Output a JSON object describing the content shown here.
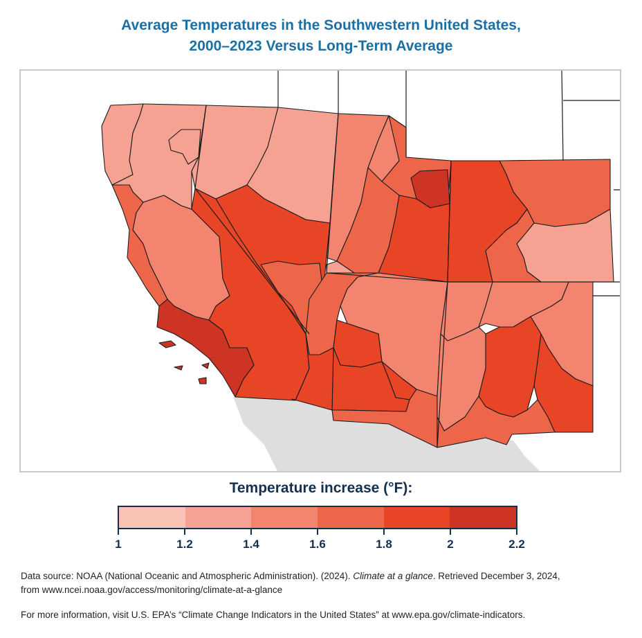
{
  "title_line1": "Average Temperatures in the Southwestern United States,",
  "title_line2": "2000–2023 Versus Long-Term Average",
  "legend": {
    "title": "Temperature increase (°F):",
    "ticks": [
      "1",
      "1.2",
      "1.4",
      "1.6",
      "1.8",
      "2",
      "2.2"
    ],
    "bins": [
      {
        "range": "1–1.2",
        "color": "#f8c2b5"
      },
      {
        "range": "1.2–1.4",
        "color": "#f5a293"
      },
      {
        "range": "1.4–1.6",
        "color": "#f38570"
      },
      {
        "range": "1.6–1.8",
        "color": "#ee664a"
      },
      {
        "range": "1.8–2",
        "color": "#e84426"
      },
      {
        "range": "2–2.2",
        "color": "#cd3424"
      }
    ]
  },
  "map": {
    "colors": {
      "outside_land": "#ffffff",
      "mexico": "#dedede",
      "ocean": "#ffffff",
      "border": "#1b1b1b"
    }
  },
  "source": {
    "prefix": "Data source: NOAA (National Oceanic and Atmospheric Administration). (2024). ",
    "italic": "Climate at a glance",
    "suffix": ". Retrieved December 3, 2024,",
    "line2": "from www.ncei.noaa.gov/access/monitoring/climate-at-a-glance"
  },
  "more_info": "For more information, visit U.S. EPA’s “Climate Change Indicators in the United States” at www.epa.gov/climate-indicators."
}
